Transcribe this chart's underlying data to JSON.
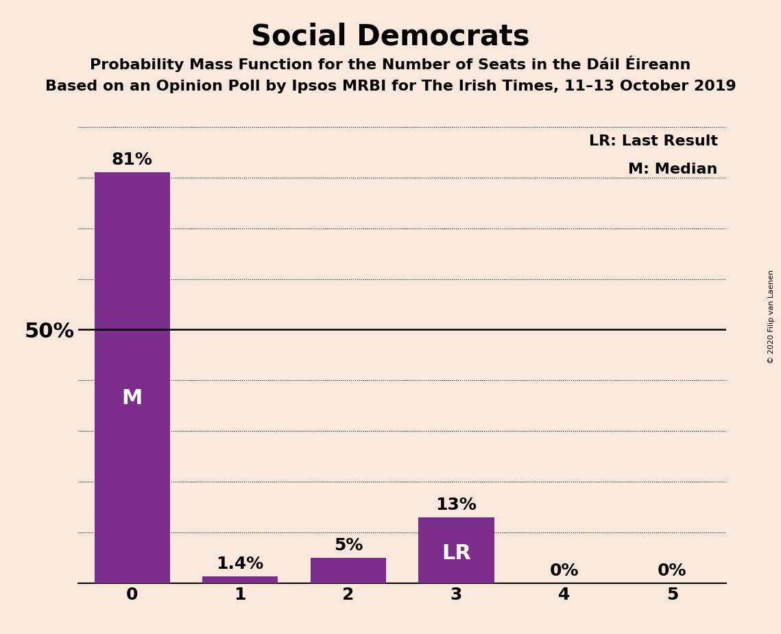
{
  "title": "Social Democrats",
  "subtitle1": "Probability Mass Function for the Number of Seats in the Dáil Éireann",
  "subtitle2": "Based on an Opinion Poll by Ipsos MRBI for The Irish Times, 11–13 October 2019",
  "categories": [
    0,
    1,
    2,
    3,
    4,
    5
  ],
  "values": [
    81,
    1.4,
    5,
    13,
    0,
    0
  ],
  "bar_color": "#7B2D8B",
  "background_color": "#FAE8DC",
  "median_bar": 0,
  "lr_bar": 3,
  "median_label": "M",
  "lr_label": "LR",
  "legend_lr": "LR: Last Result",
  "legend_m": "M: Median",
  "ylabel_50": "50%",
  "ylim": [
    0,
    90
  ],
  "fifty_pct_line": 50,
  "bar_labels": [
    "81%",
    "1.4%",
    "5%",
    "13%",
    "0%",
    "0%"
  ],
  "copyright": "© 2020 Filip van Laenen",
  "title_fontsize": 30,
  "subtitle_fontsize": 16,
  "bar_label_fontsize": 18,
  "inner_label_fontsize": 22,
  "legend_fontsize": 16,
  "axis_tick_fontsize": 18,
  "fifty_label_fontsize": 22,
  "dotted_lines": [
    10,
    20,
    30,
    40,
    60,
    70,
    80,
    90
  ]
}
